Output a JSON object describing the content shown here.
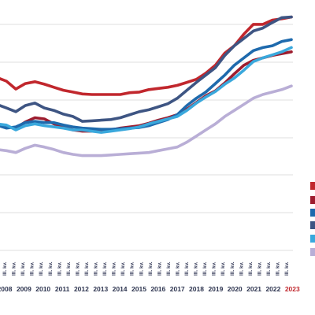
{
  "chart_data": {
    "type": "line",
    "x_labels": {
      "quarter_label": "III. kv.",
      "years": [
        "2008",
        "2009",
        "2010",
        "2011",
        "2012",
        "2013",
        "2014",
        "2015",
        "2016",
        "2017",
        "2018",
        "2019",
        "2020",
        "2021",
        "2022",
        "2023"
      ],
      "highlighted_year": "2023"
    },
    "grid": true,
    "legend": "right",
    "ylim": [
      0,
      400
    ],
    "series": [
      {
        "color": "#c1272d",
        "values": [
          286,
          280,
          267,
          276,
          279,
          275,
          270,
          265,
          262,
          259,
          258,
          258,
          258,
          258,
          261,
          262,
          266,
          268,
          270,
          273,
          278,
          283,
          293,
          306,
          326,
          338,
          357,
          373,
          373,
          380,
          382,
          385
        ]
      },
      {
        "color": "#9d1d2f",
        "values": [
          208,
          205,
          203,
          213,
          220,
          218,
          210,
          205,
          200,
          198,
          198,
          198,
          200,
          203,
          205,
          207,
          211,
          216,
          220,
          225,
          234,
          245,
          256,
          264,
          277,
          292,
          306,
          314,
          318,
          322,
          325,
          328
        ]
      },
      {
        "color": "#1e6aad",
        "values": [
          208,
          203,
          205,
          212,
          214,
          212,
          212,
          208,
          205,
          203,
          202,
          201,
          201,
          202,
          203,
          204,
          207,
          212,
          217,
          225,
          240,
          252,
          262,
          276,
          290,
          306,
          318,
          330,
          335,
          338,
          345,
          348
        ]
      },
      {
        "color": "#3e5583",
        "values": [
          242,
          236,
          230,
          240,
          244,
          236,
          232,
          226,
          222,
          214,
          215,
          216,
          217,
          220,
          225,
          230,
          233,
          238,
          243,
          252,
          265,
          278,
          290,
          302,
          322,
          338,
          350,
          362,
          367,
          376,
          384,
          385
        ]
      },
      {
        "color": "#3aa8dc",
        "values": [
          210,
          208,
          200,
          207,
          210,
          207,
          205,
          203,
          200,
          200,
          198,
          196,
          198,
          200,
          202,
          205,
          210,
          214,
          218,
          222,
          232,
          244,
          254,
          263,
          275,
          285,
          298,
          312,
          318,
          323,
          328,
          335
        ]
      },
      {
        "color": "#b9aed6",
        "values": [
          168,
          166,
          163,
          170,
          175,
          172,
          168,
          163,
          160,
          158,
          158,
          158,
          159,
          160,
          161,
          162,
          163,
          166,
          169,
          172,
          180,
          190,
          200,
          210,
          222,
          232,
          242,
          252,
          258,
          262,
          266,
          272
        ]
      }
    ],
    "legend_swatch_colors": [
      "#c1272d",
      "#9d1d2f",
      "#1e6aad",
      "#3e5583",
      "#3aa8dc",
      "#b9aed6"
    ]
  }
}
